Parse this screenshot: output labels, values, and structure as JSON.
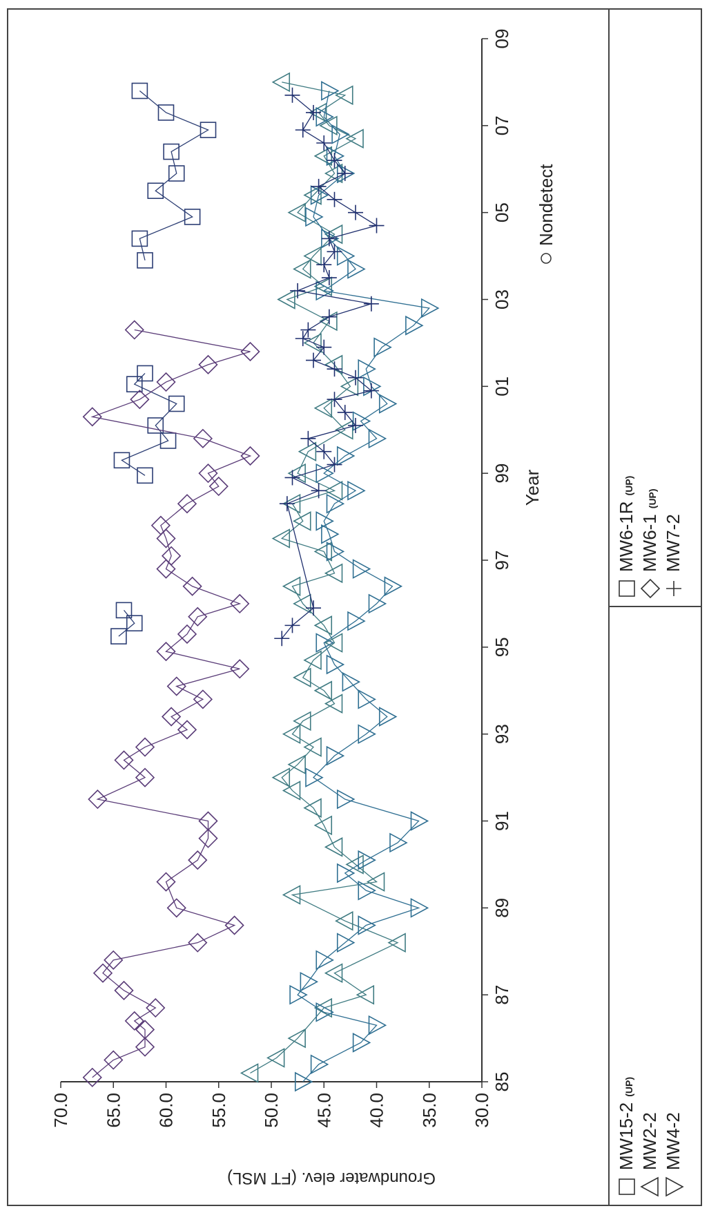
{
  "chart_data": {
    "type": "line",
    "xlabel": "Year",
    "ylabel": "Groundwater elev. (FT MSL)",
    "xlim": [
      1985,
      2009
    ],
    "ylim": [
      30,
      70
    ],
    "x_ticks": [
      "85",
      "87",
      "89",
      "91",
      "93",
      "95",
      "97",
      "99",
      "01",
      "03",
      "05",
      "07",
      "09"
    ],
    "y_ticks": [
      "30.0",
      "35.0",
      "40.0",
      "45.0",
      "50.0",
      "55.0",
      "60.0",
      "65.0",
      "70.0"
    ],
    "nondetect_label": "Nondetect",
    "series": [
      {
        "name": "MW15-2",
        "tag": "(UP)",
        "marker": "square",
        "color": "#2c3e74",
        "x": [
          1998.95,
          1999.3,
          1999.75,
          2000.1,
          2000.6,
          2001.05,
          2001.3
        ],
        "y": [
          62.0,
          64.2,
          59.8,
          61.0,
          59.0,
          63.0,
          62.0
        ]
      },
      {
        "name": "MW2-2",
        "tag": "",
        "marker": "triangle-up",
        "color": "#3f7b82",
        "x": [
          1985.2,
          1985.55,
          1986.0,
          1986.7,
          1987.0,
          1987.5,
          1988.2,
          1988.7,
          1989.3,
          1989.6,
          1990.0,
          1990.4,
          1990.9,
          1991.3,
          1991.7,
          1992.0,
          1992.3,
          1992.7,
          1993.0,
          1993.3,
          1993.7,
          1994.0,
          1994.3,
          1994.7,
          1995.1,
          1995.5,
          1996.0,
          1996.4,
          1996.7,
          1997.2,
          1997.5,
          1997.9,
          1998.3,
          1998.6,
          1999.0,
          1999.5,
          2000.0,
          2000.5,
          2001.0,
          2001.5,
          2002.0,
          2002.5,
          2003.0,
          2003.3,
          2003.7,
          2004.0,
          2004.5,
          2005.0,
          2005.4,
          2005.9,
          2006.3,
          2006.7,
          2007.0,
          2007.3,
          2007.7,
          2008.0
        ],
        "y": [
          52.0,
          49.5,
          47.5,
          45.0,
          41.0,
          44.0,
          38.0,
          43.0,
          48.0,
          40.0,
          42.0,
          44.0,
          45.0,
          46.0,
          48.0,
          49.0,
          47.5,
          46.0,
          48.0,
          47.0,
          44.0,
          45.0,
          47.0,
          46.0,
          44.0,
          45.0,
          47.0,
          48.0,
          44.0,
          45.0,
          49.0,
          47.0,
          48.0,
          44.0,
          47.5,
          46.5,
          43.0,
          45.0,
          42.5,
          44.0,
          46.0,
          44.5,
          48.5,
          45.0,
          47.0,
          46.0,
          44.0,
          47.5,
          46.0,
          44.0,
          45.0,
          42.0,
          44.5,
          45.5,
          43.0,
          49.0
        ]
      },
      {
        "name": "MW4-2",
        "tag": "",
        "marker": "triangle-down",
        "color": "#2f6f92",
        "x": [
          1985.0,
          1985.4,
          1985.9,
          1986.3,
          1986.6,
          1987.0,
          1987.3,
          1987.8,
          1988.2,
          1988.6,
          1989.0,
          1989.4,
          1989.8,
          1990.1,
          1990.5,
          1991.0,
          1991.5,
          1992.0,
          1992.5,
          1993.0,
          1993.4,
          1993.8,
          1994.2,
          1994.6,
          1995.1,
          1995.6,
          1996.0,
          1996.4,
          1996.8,
          1997.2,
          1997.6,
          1997.9,
          1998.3,
          1998.6,
          1999.0,
          1999.4,
          1999.8,
          2000.2,
          2000.6,
          2001.0,
          2001.4,
          2001.9,
          2002.4,
          2002.8,
          2003.2,
          2003.7,
          2004.0,
          2004.4,
          2004.9,
          2005.4,
          2005.9,
          2006.3,
          2006.8,
          2007.2,
          2007.8
        ],
        "y": [
          47.0,
          45.5,
          41.5,
          40.0,
          45.0,
          47.5,
          46.5,
          45.0,
          43.0,
          41.0,
          36.0,
          41.0,
          43.0,
          41.0,
          38.0,
          36.0,
          43.0,
          46.0,
          44.0,
          41.0,
          39.0,
          41.0,
          42.5,
          44.0,
          45.0,
          42.0,
          40.0,
          38.5,
          41.5,
          44.0,
          44.5,
          45.0,
          44.0,
          42.0,
          45.0,
          43.0,
          40.0,
          41.5,
          39.0,
          40.5,
          41.0,
          39.5,
          36.5,
          35.0,
          45.0,
          42.0,
          43.0,
          44.5,
          46.0,
          45.5,
          43.0,
          44.0,
          43.5,
          45.0,
          44.5
        ]
      },
      {
        "name": "MW6-1R",
        "tag": "(UP)",
        "marker": "square",
        "color": "#2c3e74",
        "x": [
          1995.25,
          1995.55,
          1995.85,
          2003.9,
          2004.4,
          2004.9,
          2005.5,
          2005.9,
          2006.4,
          2006.9,
          2007.3,
          2007.8
        ],
        "y": [
          64.5,
          63.0,
          64.0,
          62.0,
          62.5,
          57.5,
          61.0,
          59.0,
          59.5,
          56.0,
          60.0,
          62.5
        ]
      },
      {
        "name": "MW6-1",
        "tag": "(UP)",
        "marker": "diamond",
        "color": "#5a3c78",
        "x": [
          1985.1,
          1985.5,
          1985.8,
          1986.2,
          1986.4,
          1986.7,
          1987.1,
          1987.5,
          1987.8,
          1988.2,
          1988.6,
          1989.0,
          1989.6,
          1990.1,
          1990.6,
          1991.0,
          1991.5,
          1992.0,
          1992.4,
          1992.7,
          1993.1,
          1993.4,
          1993.8,
          1994.1,
          1994.5,
          1994.9,
          1995.3,
          1995.7,
          1996.0,
          1996.4,
          1996.8,
          1997.1,
          1997.5,
          1997.8,
          1998.3,
          1998.7,
          1999.0,
          1999.4,
          1999.8,
          2000.3,
          2000.7,
          2001.1,
          2001.5,
          2001.8,
          2002.3
        ],
        "y": [
          67.0,
          65.0,
          62.0,
          62.0,
          63.0,
          61.0,
          64.0,
          66.0,
          65.0,
          57.0,
          53.5,
          59.0,
          60.0,
          57.0,
          56.0,
          56.0,
          66.5,
          62.0,
          64.0,
          62.0,
          58.0,
          59.5,
          56.5,
          59.0,
          53.0,
          60.0,
          58.0,
          57.0,
          53.0,
          57.5,
          60.0,
          59.5,
          60.0,
          60.5,
          58.0,
          55.0,
          56.0,
          52.0,
          56.5,
          67.0,
          62.5,
          60.0,
          56.0,
          52.0,
          63.0
        ]
      },
      {
        "name": "MW7-2",
        "tag": "",
        "marker": "plus",
        "color": "#1f2f6e",
        "x": [
          1995.2,
          1995.5,
          1995.9,
          1998.3,
          1998.6,
          1998.9,
          1999.2,
          1999.5,
          1999.8,
          2000.1,
          2000.4,
          2000.7,
          2000.9,
          2001.2,
          2001.4,
          2001.6,
          2001.9,
          2002.1,
          2002.3,
          2002.6,
          2002.9,
          2003.2,
          2003.5,
          2003.8,
          2004.1,
          2004.4,
          2004.7,
          2005.0,
          2005.3,
          2005.6,
          2005.9,
          2006.2,
          2006.6,
          2006.9,
          2007.3,
          2007.7
        ],
        "y": [
          49.0,
          48.0,
          46.0,
          48.5,
          45.5,
          48.0,
          44.0,
          45.0,
          46.5,
          42.0,
          43.0,
          44.0,
          40.5,
          42.0,
          44.0,
          46.0,
          45.0,
          47.0,
          46.5,
          44.5,
          40.5,
          47.5,
          44.5,
          45.0,
          44.0,
          44.5,
          40.0,
          42.0,
          44.0,
          45.5,
          43.0,
          44.0,
          45.0,
          47.0,
          46.0,
          48.0
        ]
      }
    ],
    "legend": {
      "left_group": [
        "MW15-2",
        "MW2-2",
        "MW4-2"
      ],
      "right_group": [
        "MW6-1R",
        "MW6-1",
        "MW7-2"
      ],
      "placement": "bottom"
    },
    "grid": false
  }
}
